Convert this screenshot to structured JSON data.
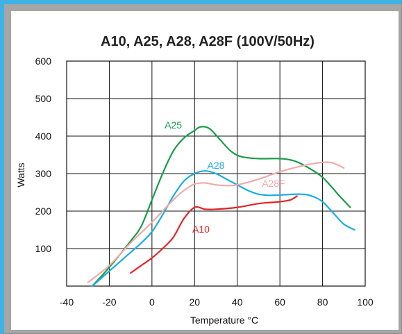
{
  "chart_data": {
    "type": "line",
    "title": "A10, A25, A28, A28F (100V/50Hz)",
    "xlabel": "Temperature °C",
    "ylabel": "Watts",
    "xlim": [
      -40,
      100
    ],
    "ylim": [
      0,
      600
    ],
    "x_ticks": [
      -40,
      -20,
      0,
      20,
      40,
      60,
      80,
      100
    ],
    "x_tick_labels": [
      "-40",
      "-20",
      "0",
      "20",
      "40",
      "60",
      "80",
      "100"
    ],
    "y_ticks": [
      100,
      200,
      300,
      400,
      500,
      600
    ],
    "y_tick_labels": [
      "100",
      "200",
      "300",
      "400",
      "500",
      "600"
    ],
    "grid": true,
    "series": [
      {
        "name": "A25",
        "color": "#1a9b4b",
        "label_at": [
          10,
          420
        ],
        "points": [
          [
            -28,
            0
          ],
          [
            -20,
            50
          ],
          [
            -10,
            120
          ],
          [
            -5,
            160
          ],
          [
            0,
            230
          ],
          [
            5,
            300
          ],
          [
            10,
            360
          ],
          [
            15,
            395
          ],
          [
            20,
            415
          ],
          [
            23,
            425
          ],
          [
            27,
            420
          ],
          [
            32,
            390
          ],
          [
            37,
            360
          ],
          [
            42,
            345
          ],
          [
            50,
            340
          ],
          [
            60,
            340
          ],
          [
            66,
            335
          ],
          [
            72,
            320
          ],
          [
            80,
            290
          ],
          [
            88,
            240
          ],
          [
            93,
            210
          ]
        ]
      },
      {
        "name": "A28",
        "color": "#1aace4",
        "label_at": [
          30,
          313
        ],
        "points": [
          [
            -28,
            0
          ],
          [
            -20,
            40
          ],
          [
            -10,
            90
          ],
          [
            -5,
            115
          ],
          [
            0,
            145
          ],
          [
            5,
            190
          ],
          [
            10,
            240
          ],
          [
            15,
            280
          ],
          [
            20,
            300
          ],
          [
            25,
            307
          ],
          [
            30,
            300
          ],
          [
            35,
            285
          ],
          [
            40,
            270
          ],
          [
            45,
            255
          ],
          [
            50,
            245
          ],
          [
            55,
            242
          ],
          [
            60,
            243
          ],
          [
            70,
            245
          ],
          [
            75,
            240
          ],
          [
            80,
            225
          ],
          [
            85,
            195
          ],
          [
            90,
            165
          ],
          [
            95,
            150
          ]
        ]
      },
      {
        "name": "A28F",
        "color": "#f2a9a9",
        "label_at": [
          57,
          265
        ],
        "points": [
          [
            -30,
            10
          ],
          [
            -20,
            55
          ],
          [
            -10,
            115
          ],
          [
            0,
            170
          ],
          [
            5,
            200
          ],
          [
            10,
            230
          ],
          [
            15,
            255
          ],
          [
            20,
            272
          ],
          [
            25,
            275
          ],
          [
            30,
            270
          ],
          [
            35,
            268
          ],
          [
            40,
            270
          ],
          [
            50,
            285
          ],
          [
            60,
            305
          ],
          [
            70,
            320
          ],
          [
            80,
            330
          ],
          [
            85,
            328
          ],
          [
            90,
            315
          ]
        ]
      },
      {
        "name": "A10",
        "color": "#e0262a",
        "label_at": [
          23,
          143
        ],
        "points": [
          [
            -10,
            35
          ],
          [
            -5,
            55
          ],
          [
            0,
            75
          ],
          [
            5,
            100
          ],
          [
            10,
            130
          ],
          [
            15,
            180
          ],
          [
            20,
            210
          ],
          [
            25,
            205
          ],
          [
            30,
            205
          ],
          [
            40,
            210
          ],
          [
            50,
            220
          ],
          [
            60,
            225
          ],
          [
            65,
            230
          ],
          [
            68,
            240
          ]
        ]
      }
    ]
  }
}
